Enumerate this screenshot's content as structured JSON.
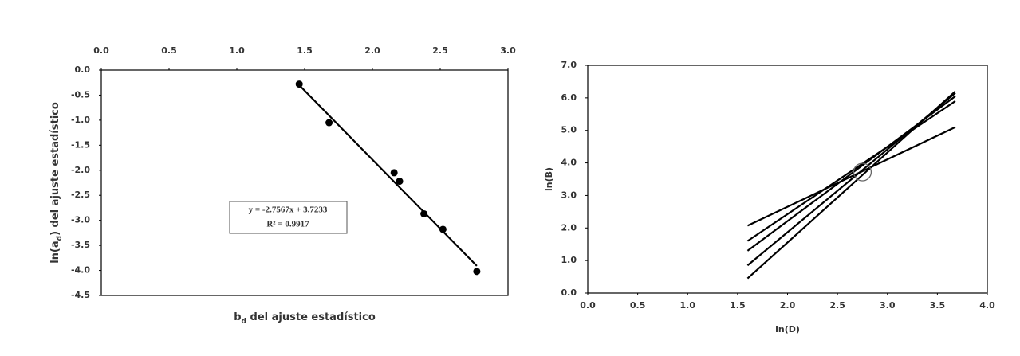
{
  "chart_data": [
    {
      "type": "scatter",
      "x_axis_position": "top",
      "ylabel_parts": [
        "ln(a",
        "d",
        ") del ajuste estadístico"
      ],
      "xlabel_parts": [
        "b",
        "d",
        " del ajuste estadístico"
      ],
      "x": [
        1.46,
        1.68,
        2.16,
        2.2,
        2.38,
        2.52,
        2.77
      ],
      "values": [
        -0.28,
        -1.05,
        -2.05,
        -2.22,
        -2.87,
        -3.18,
        -4.02
      ],
      "color": "#000000",
      "trendline": {
        "x": [
          1.46,
          2.77
        ],
        "values": [
          -0.3,
          -3.91
        ]
      },
      "annotation": [
        "y = -2.7567x + 3.7233",
        "R² = 0.9917"
      ],
      "xlim": [
        0,
        3
      ],
      "ylim": [
        -4.5,
        0
      ],
      "xticks": [
        {
          "value": 0,
          "label": "0.0"
        },
        {
          "value": 0.5,
          "label": "0.5"
        },
        {
          "value": 1,
          "label": "1.0"
        },
        {
          "value": 1.5,
          "label": "1.5"
        },
        {
          "value": 2,
          "label": "2.0"
        },
        {
          "value": 2.5,
          "label": "2.5"
        },
        {
          "value": 3,
          "label": "3.0"
        }
      ],
      "yticks": [
        {
          "value": 0,
          "label": "0.0"
        },
        -0.5,
        {
          "value": -1,
          "label": "-1.0"
        },
        -1.5,
        {
          "value": -2,
          "label": "-2.0"
        },
        -2.5,
        {
          "value": -3,
          "label": "-3.0"
        },
        -3.5,
        {
          "value": -4,
          "label": "-4.0"
        },
        -4.5
      ]
    },
    {
      "type": "line",
      "xlabel": "ln(D)",
      "ylabel": "ln(B)",
      "series": [
        {
          "color": "#000000",
          "x": [
            1.6,
            3.68
          ],
          "values": [
            2.07,
            5.1
          ]
        },
        {
          "color": "#000000",
          "x": [
            1.6,
            3.68
          ],
          "values": [
            1.6,
            5.9
          ]
        },
        {
          "color": "#000000",
          "x": [
            1.6,
            3.68
          ],
          "values": [
            1.3,
            6.05
          ]
        },
        {
          "color": "#000000",
          "x": [
            1.6,
            3.68
          ],
          "values": [
            0.85,
            6.15
          ]
        },
        {
          "color": "#000000",
          "x": [
            1.6,
            3.68
          ],
          "values": [
            0.45,
            6.2
          ]
        }
      ],
      "highlight": {
        "x": 2.75,
        "y": 3.72
      },
      "xlim": [
        0,
        4
      ],
      "ylim": [
        0,
        7
      ],
      "xticks": [
        {
          "value": 0,
          "label": "0.0"
        },
        0.5,
        {
          "value": 1,
          "label": "1.0"
        },
        1.5,
        {
          "value": 2,
          "label": "2.0"
        },
        2.5,
        {
          "value": 3,
          "label": "3.0"
        },
        3.5,
        {
          "value": 4,
          "label": "4.0"
        }
      ],
      "yticks": [
        {
          "value": 0,
          "label": "0.0"
        },
        {
          "value": 1,
          "label": "1.0"
        },
        {
          "value": 2,
          "label": "2.0"
        },
        {
          "value": 3,
          "label": "3.0"
        },
        {
          "value": 4,
          "label": "4.0"
        },
        {
          "value": 5,
          "label": "5.0"
        },
        {
          "value": 6,
          "label": "6.0"
        },
        {
          "value": 7,
          "label": "7.0"
        }
      ]
    }
  ]
}
